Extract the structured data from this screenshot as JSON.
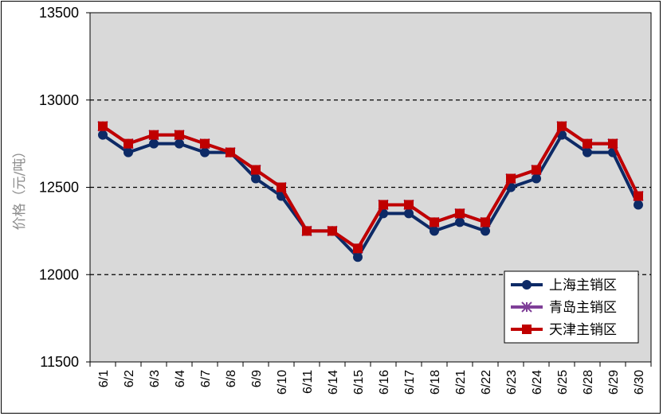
{
  "chart_data": {
    "type": "line",
    "ylabel": "价格（元/吨）",
    "xlabel": "",
    "ylim": [
      11500,
      13500
    ],
    "yticks": [
      11500,
      12000,
      12500,
      13000,
      13500
    ],
    "grid": "dashed horizontal at 12000, 12500, 13000",
    "legend_position": "bottom-right",
    "plot_background": "#d9d9d9",
    "categories": [
      "6/1",
      "6/2",
      "6/3",
      "6/4",
      "6/7",
      "6/8",
      "6/9",
      "6/10",
      "6/11",
      "6/14",
      "6/15",
      "6/16",
      "6/17",
      "6/18",
      "6/21",
      "6/22",
      "6/23",
      "6/24",
      "6/25",
      "6/28",
      "6/29",
      "6/30"
    ],
    "series": [
      {
        "name": "上海主销区",
        "color": "#0d2a66",
        "marker": "circle",
        "values": [
          12800,
          12700,
          12750,
          12750,
          12700,
          12700,
          12550,
          12450,
          12250,
          12250,
          12100,
          12350,
          12350,
          12250,
          12300,
          12250,
          12500,
          12550,
          12800,
          12700,
          12700,
          12400
        ]
      },
      {
        "name": "青岛主销区",
        "color": "#7f3f98",
        "marker": "star",
        "values": [
          12850,
          12750,
          12800,
          12800,
          12750,
          12700,
          12600,
          12500,
          12250,
          12250,
          12150,
          12400,
          12400,
          12300,
          12350,
          12300,
          12550,
          12600,
          12850,
          12750,
          12750,
          12450
        ]
      },
      {
        "name": "天津主销区",
        "color": "#c00000",
        "marker": "square",
        "values": [
          12850,
          12750,
          12800,
          12800,
          12750,
          12700,
          12600,
          12500,
          12250,
          12250,
          12150,
          12400,
          12400,
          12300,
          12350,
          12300,
          12550,
          12600,
          12850,
          12750,
          12750,
          12450
        ]
      }
    ]
  }
}
